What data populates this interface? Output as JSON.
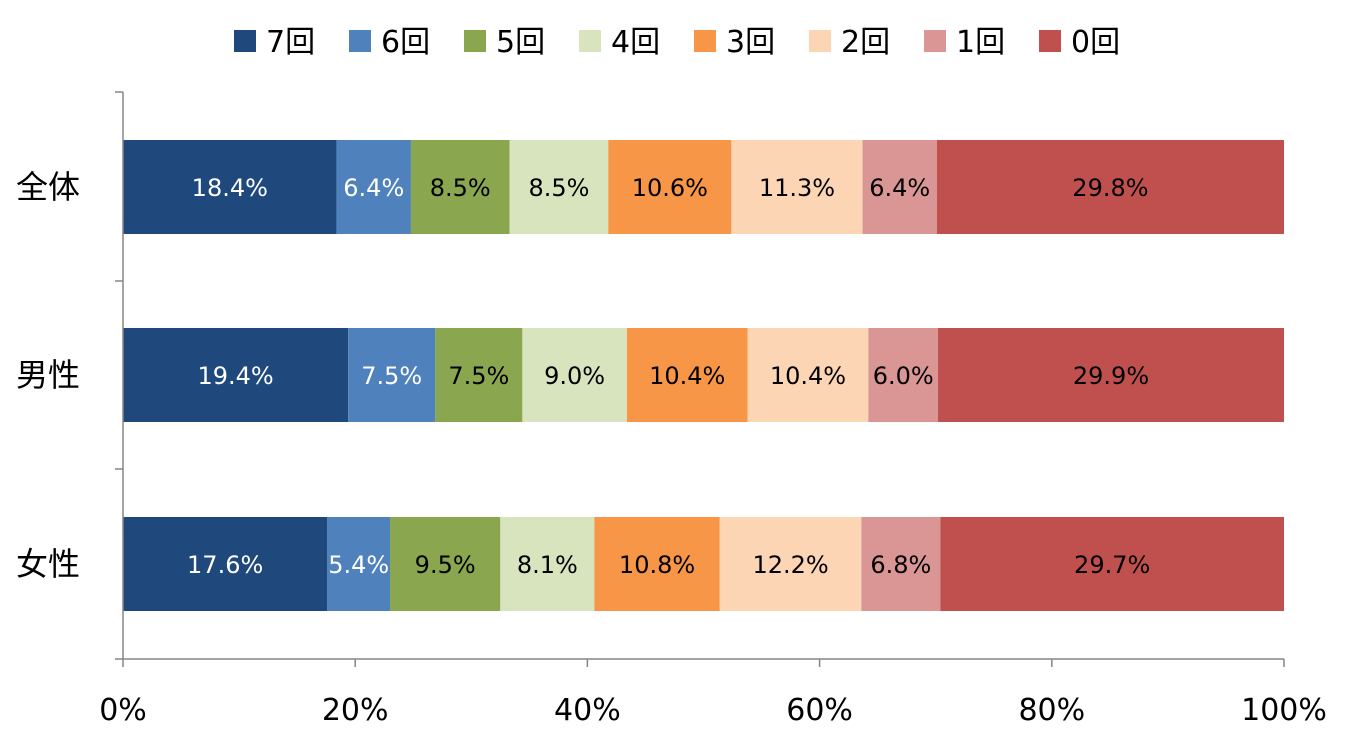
{
  "chart_data": {
    "type": "bar",
    "orientation": "horizontal",
    "stacked": "percent",
    "categories": [
      "全体",
      "男性",
      "女性"
    ],
    "series": [
      {
        "name": "7回",
        "color": "#1F497D",
        "label_color": "#ffffff",
        "values": [
          18.4,
          19.4,
          17.6
        ],
        "labels": [
          "18.4%",
          "19.4%",
          "17.6%"
        ]
      },
      {
        "name": "6回",
        "color": "#4F81BD",
        "label_color": "#ffffff",
        "values": [
          6.4,
          7.5,
          5.4
        ],
        "labels": [
          "6.4%",
          "7.5%",
          "5.4%"
        ]
      },
      {
        "name": "5回",
        "color": "#8AA64E",
        "label_color": "#000000",
        "values": [
          8.5,
          7.5,
          9.5
        ],
        "labels": [
          "8.5%",
          "7.5%",
          "9.5%"
        ]
      },
      {
        "name": "4回",
        "color": "#D7E4BD",
        "label_color": "#000000",
        "values": [
          8.5,
          9.0,
          8.1
        ],
        "labels": [
          "8.5%",
          "9.0%",
          "8.1%"
        ]
      },
      {
        "name": "3回",
        "color": "#F79646",
        "label_color": "#000000",
        "values": [
          10.6,
          10.4,
          10.8
        ],
        "labels": [
          "10.6%",
          "10.4%",
          "10.8%"
        ]
      },
      {
        "name": "2回",
        "color": "#FCD5B5",
        "label_color": "#000000",
        "values": [
          11.3,
          10.4,
          12.2
        ],
        "labels": [
          "11.3%",
          "10.4%",
          "12.2%"
        ]
      },
      {
        "name": "1回",
        "color": "#D99694",
        "label_color": "#000000",
        "values": [
          6.4,
          6.0,
          6.8
        ],
        "labels": [
          "6.4%",
          "6.0%",
          "6.8%"
        ]
      },
      {
        "name": "0回",
        "color": "#C0504D",
        "label_color": "#000000",
        "values": [
          29.8,
          29.9,
          29.7
        ],
        "labels": [
          "29.8%",
          "29.9%",
          "29.7%"
        ]
      }
    ],
    "x_ticks": [
      "0%",
      "20%",
      "40%",
      "60%",
      "80%",
      "100%"
    ],
    "xlim": [
      0,
      100
    ],
    "legend_position": "top",
    "grid": false
  }
}
